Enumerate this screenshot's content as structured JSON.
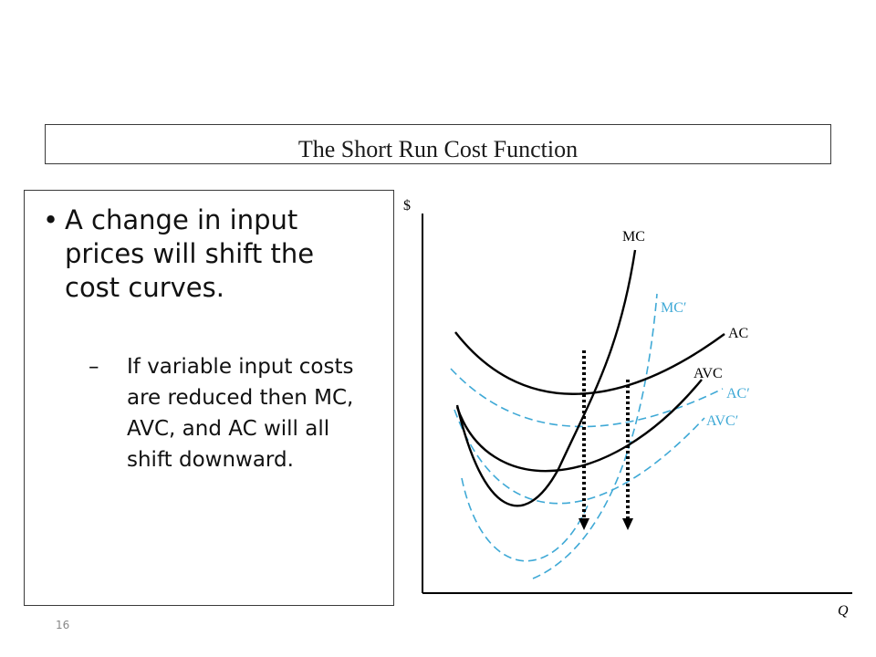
{
  "slide": {
    "title": "The Short Run Cost Function",
    "bullet_main": "A change in input prices will shift the cost curves.",
    "bullet_sub": "If variable input costs are reduced then MC, AVC, and AC will all shift downward.",
    "bullet_symbol": "•",
    "sub_bullet_symbol": "–",
    "page_number": "16"
  },
  "diagram": {
    "y_axis_label": "$",
    "x_axis_label": "Q",
    "curve_labels": {
      "mc": "MC",
      "mc_new": "MC′",
      "ac": "AC",
      "avc": "AVC",
      "ac_new": "AC′",
      "avc_new": "AVC′"
    },
    "colors": {
      "original_curves": "#000000",
      "shifted_curves": "#3fa9d6",
      "axes": "#000000"
    }
  }
}
